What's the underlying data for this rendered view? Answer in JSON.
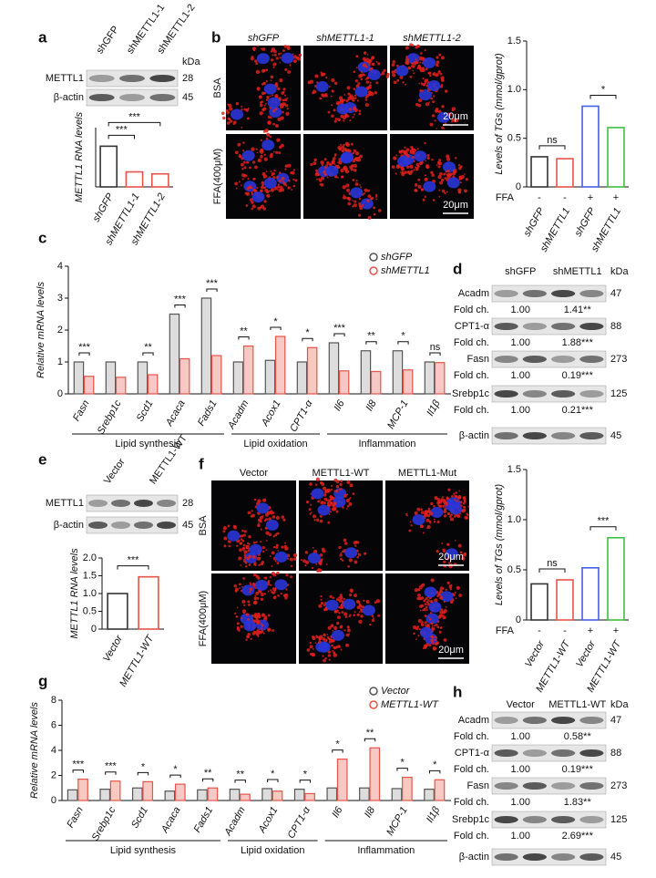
{
  "panels": [
    "a",
    "b",
    "c",
    "d",
    "e",
    "f",
    "g",
    "h"
  ],
  "chart_data": [
    {
      "type": "bar",
      "ylabel": "METTL1 RNA levels",
      "categories": [
        "shGFP",
        "shMETTL1-1",
        "shMETTL1-2"
      ],
      "values": [
        1.03,
        0.38,
        0.33
      ],
      "colors": [
        "#333333",
        "#e8534a",
        "#e8534a"
      ],
      "ylim": [
        0,
        1.5
      ],
      "annotations": [
        "***",
        "***"
      ]
    },
    {
      "type": "bar",
      "ylabel": "Levels of TGs (mmol/gprot)",
      "categories": [
        "shGFP",
        "shMETTL1",
        "shGFP",
        "shMETTL1"
      ],
      "values": [
        0.31,
        0.29,
        0.83,
        0.61
      ],
      "colors": [
        "#333333",
        "#e8534a",
        "#4a5fe8",
        "#3fbf3f"
      ],
      "ylim": [
        0,
        1.5
      ],
      "yticks": [
        0,
        0.5,
        {
          "value": 1,
          "label": "1.0"
        },
        1.5
      ],
      "annotations": [
        "ns",
        "*"
      ],
      "xrow_label": "FFA",
      "xrow": [
        "-",
        "-",
        "+",
        "+"
      ]
    },
    {
      "type": "grouped_bar",
      "ylabel": "Relative mRNA levels",
      "categories": [
        "Fasn",
        "Srebp1c",
        "Scd1",
        "Acaca",
        "Fads1",
        "Acadm",
        "Acox1",
        "CPT1-α",
        "Il6",
        "Il8",
        "MCP-1",
        "Il1β"
      ],
      "series": [
        {
          "name": "shGFP",
          "color": "#555555",
          "values": [
            1.0,
            1.0,
            1.0,
            2.5,
            3.0,
            1.0,
            1.05,
            1.0,
            1.6,
            1.35,
            1.35,
            1.0
          ]
        },
        {
          "name": "shMETTL1",
          "color": "#e8534a",
          "values": [
            0.55,
            0.52,
            0.6,
            1.1,
            1.2,
            1.5,
            1.8,
            1.45,
            0.72,
            0.7,
            0.75,
            0.98
          ]
        }
      ],
      "significance": [
        "***",
        null,
        "**",
        "***",
        "***",
        "**",
        "*",
        "*",
        "***",
        "**",
        "*",
        "ns"
      ],
      "groups": [
        "Lipid synthesis",
        "Lipid oxidation",
        "Inflammation"
      ],
      "ylim": [
        0,
        4
      ],
      "yticks": [
        0,
        1,
        2,
        3,
        4
      ]
    },
    {
      "type": "bar",
      "ylabel": "METTL1 RNA levels",
      "categories": [
        "Vector",
        "METTL1-WT"
      ],
      "values": [
        1.0,
        1.47
      ],
      "colors": [
        "#333333",
        "#e8534a"
      ],
      "ylim": [
        0,
        2
      ],
      "yticks": [
        0,
        0.5,
        {
          "value": 1,
          "label": "1.0"
        },
        1.5,
        {
          "value": 2,
          "label": "2.0"
        }
      ],
      "annotations": [
        "***"
      ]
    },
    {
      "type": "bar",
      "ylabel": "Levels of TGs (mmol/gprot)",
      "categories": [
        "Vector",
        "METTL1-WT",
        "Vector",
        "METTL1-WT"
      ],
      "values": [
        0.36,
        0.4,
        0.52,
        0.82
      ],
      "colors": [
        "#333333",
        "#e8534a",
        "#4a5fe8",
        "#3fbf3f"
      ],
      "ylim": [
        0,
        1.5
      ],
      "yticks": [
        0,
        0.5,
        {
          "value": 1,
          "label": "1.0"
        },
        1.5
      ],
      "annotations": [
        "ns",
        "***"
      ],
      "xrow_label": "FFA",
      "xrow": [
        "-",
        "-",
        "+",
        "+"
      ]
    },
    {
      "type": "grouped_bar",
      "ylabel": "Relative mRNA levels",
      "categories": [
        "Fasn",
        "Srebp1c",
        "Scd1",
        "Acaca",
        "Fads1",
        "Acadm",
        "Acox1",
        "CPT1-α",
        "Il6",
        "Il8",
        "MCP-1",
        "Il1β"
      ],
      "series": [
        {
          "name": "Vector",
          "color": "#555555",
          "values": [
            0.85,
            0.9,
            1.0,
            0.75,
            0.85,
            0.9,
            0.95,
            0.9,
            1.0,
            1.0,
            0.95,
            0.9
          ]
        },
        {
          "name": "METTL1-WT",
          "color": "#e8534a",
          "values": [
            1.7,
            1.55,
            1.5,
            1.3,
            1.0,
            0.5,
            0.75,
            0.55,
            3.3,
            4.2,
            1.85,
            1.65
          ]
        }
      ],
      "significance": [
        "***",
        "***",
        "*",
        "*",
        "**",
        "**",
        "*",
        "*",
        "*",
        "**",
        "*",
        "*"
      ],
      "groups": [
        "Lipid synthesis",
        "Lipid oxidation",
        "Inflammation"
      ],
      "ylim": [
        0,
        8
      ],
      "yticks": [
        0,
        2,
        4,
        6,
        8
      ]
    }
  ],
  "blots": [
    {
      "lanes": [
        "shGFP",
        "shMETTL1-1",
        "shMETTL1-2"
      ],
      "unit": "kDa",
      "rows": [
        {
          "label": "METTL1",
          "kda": 28
        },
        {
          "label": "β-actin",
          "kda": 45
        }
      ]
    },
    {
      "lanes": [
        "shGFP",
        "shMETTL1"
      ],
      "unit": "kDa",
      "rows": [
        {
          "label": "Acadm",
          "kda": 47,
          "fold_label": "Fold ch.",
          "fold": [
            "1.00",
            "1.41**"
          ]
        },
        {
          "label": "CPT1-α",
          "kda": 88,
          "fold_label": "Fold ch.",
          "fold": [
            "1.00",
            "1.88***"
          ]
        },
        {
          "label": "Fasn",
          "kda": 273,
          "fold_label": "Fold ch.",
          "fold": [
            "1.00",
            "0.19***"
          ]
        },
        {
          "label": "Srebp1c",
          "kda": 125,
          "fold_label": "Fold ch.",
          "fold": [
            "1.00",
            "0.21***"
          ]
        },
        {
          "label": "β-actin",
          "kda": 45
        }
      ]
    },
    {
      "lanes": [
        "Vector",
        "METTL1-WT"
      ],
      "rows": [
        {
          "label": "METTL1",
          "kda": 28
        },
        {
          "label": "β-actin",
          "kda": 45
        }
      ]
    },
    {
      "lanes": [
        "Vector",
        "METTL1-WT"
      ],
      "unit": "kDa",
      "rows": [
        {
          "label": "Acadm",
          "kda": 47,
          "fold_label": "Fold ch.",
          "fold": [
            "1.00",
            "0.58**"
          ]
        },
        {
          "label": "CPT1-α",
          "kda": 88,
          "fold_label": "Fold ch.",
          "fold": [
            "1.00",
            "0.19***"
          ]
        },
        {
          "label": "Fasn",
          "kda": 273,
          "fold_label": "Fold ch.",
          "fold": [
            "1.00",
            "1.83**"
          ]
        },
        {
          "label": "Srebp1c",
          "kda": 125,
          "fold_label": "Fold ch.",
          "fold": [
            "1.00",
            "2.69***"
          ]
        },
        {
          "label": "β-actin",
          "kda": 45
        }
      ]
    }
  ],
  "micrographs": [
    {
      "columns": [
        "shGFP",
        "shMETTL1-1",
        "shMETTL1-2"
      ],
      "rows": [
        "BSA",
        "FFA(400μM)"
      ],
      "scale_bar": "20μm"
    },
    {
      "columns": [
        "Vector",
        "METTL1-WT",
        "METTL1-Mut"
      ],
      "rows": [
        "BSA",
        "FFA(400μM)"
      ],
      "scale_bar": "20μm"
    }
  ]
}
